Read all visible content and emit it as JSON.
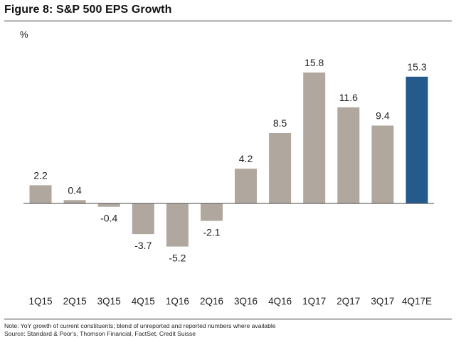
{
  "header": {
    "title": "Figure 8: S&P 500 EPS Growth"
  },
  "chart_data": {
    "type": "bar",
    "title": "Figure 8: S&P 500 EPS Growth",
    "xlabel": "",
    "ylabel": "%",
    "categories": [
      "1Q15",
      "2Q15",
      "3Q15",
      "4Q15",
      "1Q16",
      "2Q16",
      "3Q16",
      "4Q16",
      "1Q17",
      "2Q17",
      "3Q17",
      "4Q17E"
    ],
    "values": [
      2.2,
      0.4,
      -0.4,
      -3.7,
      -5.2,
      -2.1,
      4.2,
      8.5,
      15.8,
      11.6,
      9.4,
      15.3
    ],
    "value_labels": [
      "2.2",
      "0.4",
      "-0.4",
      "-3.7",
      "-5.2",
      "-2.1",
      "4.2",
      "8.5",
      "15.8",
      "11.6",
      "9.4",
      "15.3"
    ],
    "estimate_flags": [
      false,
      false,
      false,
      false,
      false,
      false,
      false,
      false,
      false,
      false,
      false,
      true
    ],
    "ylim": [
      -8,
      20
    ],
    "grid": false,
    "legend": "none",
    "colors": {
      "actual": "#b0a79f",
      "estimate": "#245a8c",
      "axis": "#444444"
    }
  },
  "footer": {
    "note": "Note: YoY growth of current constituents; blend of unreported and reported numbers where available",
    "source": "Source: Standard & Poor's, Thomson Financial, FactSet, Credit Suisse"
  }
}
